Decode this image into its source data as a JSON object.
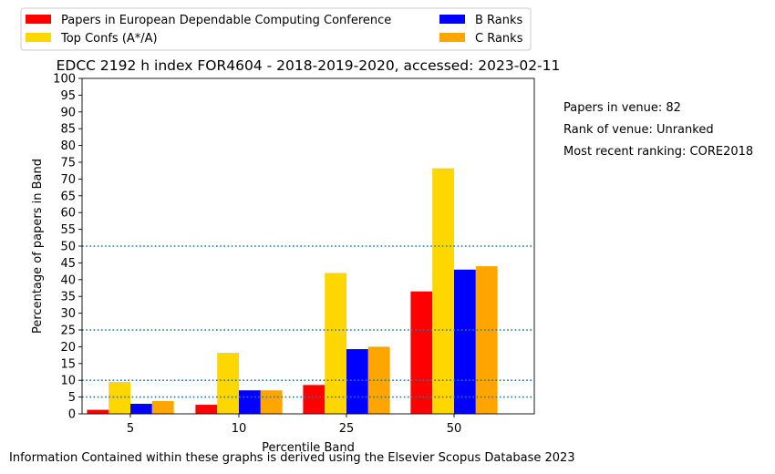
{
  "chart_data": {
    "type": "bar",
    "title": "EDCC 2192 h index FOR4604 - 2018-2019-2020, accessed: 2023-02-11",
    "xlabel": "Percentile Band",
    "ylabel": "Percentage of papers in Band",
    "categories": [
      "5",
      "10",
      "25",
      "50"
    ],
    "ylim": [
      0,
      100
    ],
    "yticks": [
      0,
      5,
      10,
      15,
      20,
      25,
      30,
      35,
      40,
      45,
      50,
      55,
      60,
      65,
      70,
      75,
      80,
      85,
      90,
      95,
      100
    ],
    "series": [
      {
        "name": "Papers in European Dependable Computing Conference",
        "color": "#ff0000",
        "values": [
          1.2,
          2.7,
          8.6,
          36.5
        ]
      },
      {
        "name": "Top Confs (A*/A)",
        "color": "#ffd700",
        "values": [
          9.5,
          18.2,
          42.0,
          73.2
        ]
      },
      {
        "name": "B Ranks",
        "color": "#0000ff",
        "values": [
          3.0,
          7.0,
          19.3,
          43.0
        ]
      },
      {
        "name": "C Ranks",
        "color": "#ffa500",
        "values": [
          3.8,
          7.0,
          20.0,
          44.0
        ]
      }
    ],
    "reference_lines": [
      5,
      10,
      25,
      50
    ],
    "legend_position": "top-left, above plot, two columns"
  },
  "side_notes": {
    "papers_in_venue": "Papers in venue: 82",
    "rank_of_venue": "Rank of venue: Unranked",
    "most_recent_ranking": "Most recent ranking: CORE2018"
  },
  "footer": "Information Contained within these graphs is derived using the Elsevier Scopus Database 2023"
}
